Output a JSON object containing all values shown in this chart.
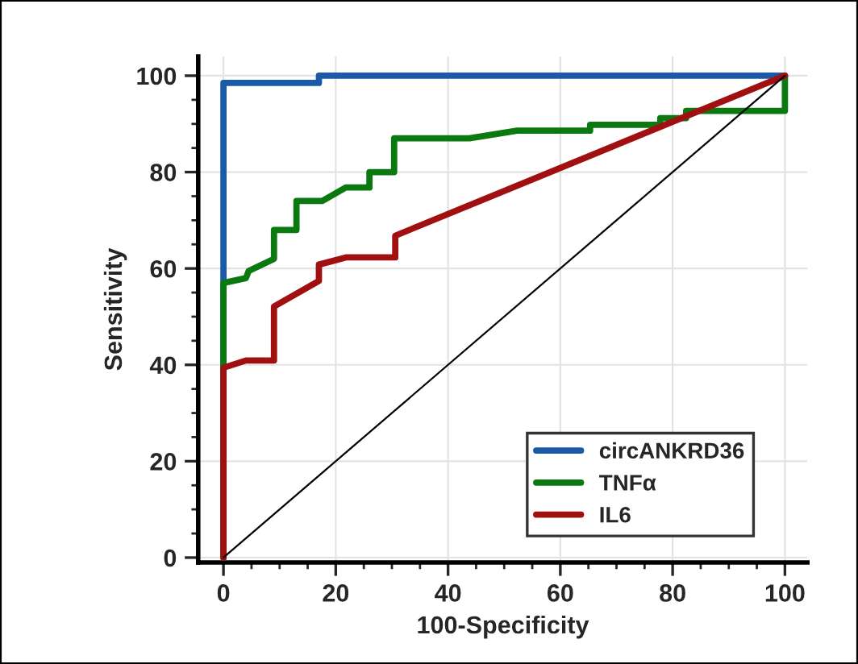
{
  "chart_data": {
    "type": "line",
    "xlabel": "100-Specificity",
    "ylabel": "Sensitivity",
    "xlim": [
      -4.5,
      104
    ],
    "ylim": [
      -1,
      104
    ],
    "xticks": [
      0,
      20,
      40,
      60,
      80,
      100
    ],
    "yticks": [
      0,
      20,
      40,
      60,
      80,
      100
    ],
    "grid": true,
    "legend": "bottom right",
    "line_style": "solid",
    "marker": "none",
    "series": [
      {
        "name": "circANKRD36",
        "color": "#1a5aa8",
        "x": [
          0,
          0,
          17,
          17,
          100
        ],
        "values": [
          0,
          98.5,
          98.5,
          100,
          100
        ]
      },
      {
        "name": "TNFα",
        "color": "#0a7a10",
        "x": [
          0,
          0,
          4,
          4.5,
          9,
          9,
          13,
          13,
          17.6,
          21.8,
          26,
          26,
          30.4,
          30.4,
          43.8,
          52.3,
          65.3,
          65.3,
          77.8,
          77.8,
          82.4,
          82.4,
          100,
          100
        ],
        "values": [
          0,
          57,
          58,
          59.5,
          62,
          68,
          68,
          74,
          74,
          76.8,
          76.8,
          80,
          80,
          87,
          87,
          88.6,
          88.6,
          89.8,
          89.8,
          91.2,
          91.2,
          92.7,
          92.7,
          100
        ]
      },
      {
        "name": "IL6",
        "color": "#a01010",
        "x": [
          0,
          0,
          4,
          9,
          9,
          17,
          17,
          21.8,
          30.6,
          30.6,
          100
        ],
        "values": [
          0,
          39.4,
          40.9,
          40.9,
          52.1,
          57.4,
          60.8,
          62.3,
          62.3,
          66.8,
          100
        ]
      },
      {
        "color": "#000000",
        "x": [
          0,
          100
        ],
        "values": [
          0,
          100
        ]
      }
    ]
  }
}
